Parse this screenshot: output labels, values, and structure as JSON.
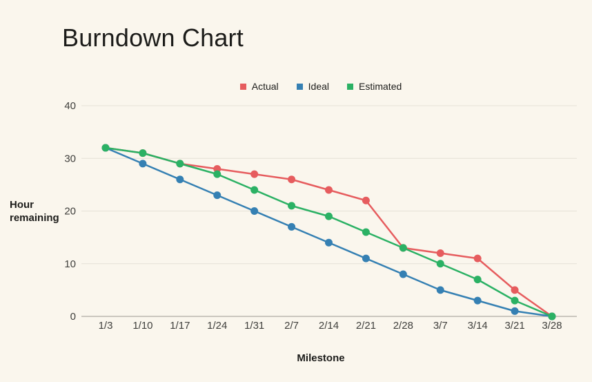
{
  "title": "Burndown Chart",
  "chart_data": {
    "type": "line",
    "categories": [
      "1/3",
      "1/10",
      "1/17",
      "1/24",
      "1/31",
      "2/7",
      "2/14",
      "2/21",
      "2/28",
      "3/7",
      "3/14",
      "3/21",
      "3/28"
    ],
    "series": [
      {
        "name": "Actual",
        "color": "#e65c5e",
        "values": [
          32,
          31,
          29,
          28,
          27,
          26,
          24,
          22,
          13,
          12,
          11,
          5,
          0
        ]
      },
      {
        "name": "Ideal",
        "color": "#3580b3",
        "values": [
          32,
          29,
          26,
          23,
          20,
          17,
          14,
          11,
          8,
          5,
          3,
          1,
          0
        ]
      },
      {
        "name": "Estimated",
        "color": "#2bb164",
        "values": [
          32,
          31,
          29,
          27,
          24,
          21,
          19,
          16,
          13,
          10,
          7,
          3,
          0
        ]
      }
    ],
    "xlabel": "Milestone",
    "ylabel": "Hour remaining",
    "y_ticks": [
      0,
      10,
      20,
      30,
      40
    ],
    "ylim": [
      0,
      40
    ],
    "grid": true,
    "legend_position": "top"
  },
  "colors": {
    "background": "#faf6ed",
    "text": "#1c1c1a",
    "tick_text": "#3f3f3c",
    "gridline": "#e5e1d6",
    "axis_line": "#9a978e"
  }
}
